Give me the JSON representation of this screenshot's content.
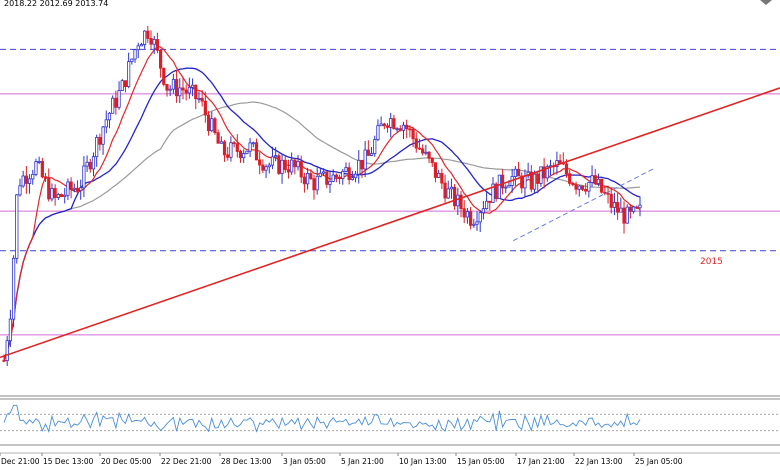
{
  "header": {
    "ohlc_text": "2018.22 2012.69 2013.74"
  },
  "colors": {
    "bull": "#2e33cc",
    "bear": "#dc1f26",
    "ma_fast": "#e0272b",
    "ma_mid": "#2424c8",
    "ma_slow": "#9a9a9a",
    "trendline": "#e32222",
    "hline_pink": "#d46ad4",
    "hline_dashed": "#4040d0",
    "rsi": "#4a8fd8",
    "grid": "#b0b0b0"
  },
  "level_label": "2015",
  "chart_data": {
    "type": "candlestick",
    "x_axis_labels": [
      "Dec 21:00",
      "15 Dec 13:00",
      "20 Dec 05:00",
      "22 Dec 21:00",
      "28 Dec 13:00",
      "3 Jan 05:00",
      "5 Jan 21:00",
      "10 Jan 13:00",
      "15 Jan 05:00",
      "17 Jan 21:00",
      "22 Jan 13:00",
      "25 Jan 05:00"
    ],
    "y_range": [
      1985,
      2050
    ],
    "horizontal_levels": [
      {
        "value": 2042.5,
        "style": "dashed",
        "color": "#4040d0"
      },
      {
        "value": 2035.0,
        "style": "solid",
        "color": "#d46ad4"
      },
      {
        "value": 2015.2,
        "style": "solid",
        "color": "#d46ad4"
      },
      {
        "value": 2008.5,
        "style": "dashed",
        "color": "#4040d0"
      },
      {
        "value": 1994.3,
        "style": "solid",
        "color": "#d46ad4"
      }
    ],
    "trendlines": [
      {
        "from": [
          0.0,
          1990.5
        ],
        "to": [
          1.0,
          2036.0
        ],
        "style": "solid",
        "color": "#e32222"
      },
      {
        "from": [
          0.658,
          2010.2
        ],
        "to": [
          0.84,
          2022.5
        ],
        "style": "dashed",
        "color": "#6a7ee0"
      }
    ],
    "indicator": {
      "name": "RSI",
      "range": [
        0,
        100
      ],
      "levels": [
        30,
        70
      ]
    }
  }
}
